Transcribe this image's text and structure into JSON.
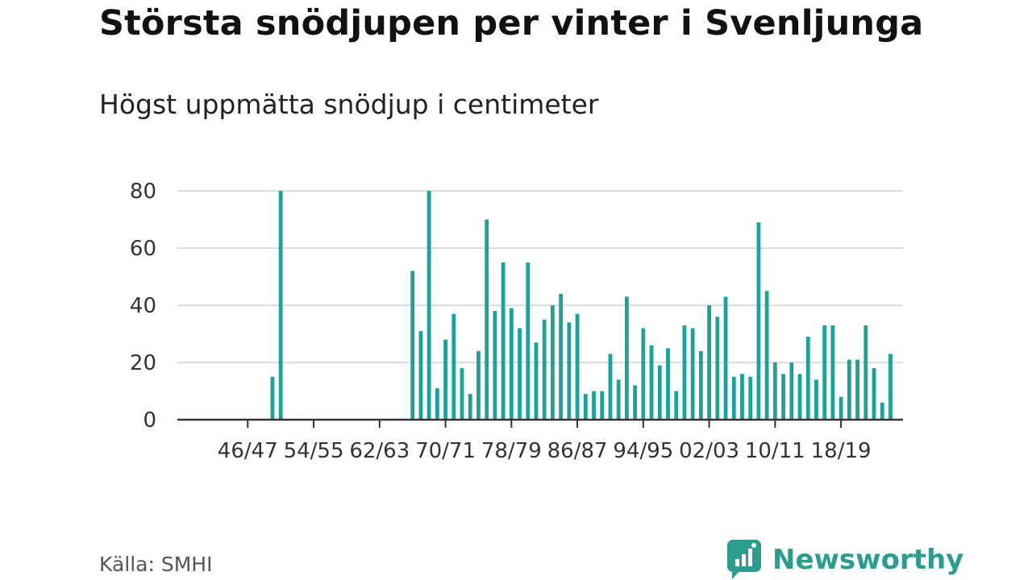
{
  "header": {
    "title": "Största snödjupen per vinter i Svenljunga",
    "subtitle": "Högst uppmätta snödjup i centimeter"
  },
  "footer": {
    "source": "Källa: SMHI",
    "brand": "Newsworthy",
    "brand_icon": "newsworthy-speech-bubble-bars-icon"
  },
  "colors": {
    "bar": "#1aa39a",
    "grid": "#dddddd",
    "axis": "#333333"
  },
  "chart_data": {
    "type": "bar",
    "title": "Största snödjupen per vinter i Svenljunga",
    "subtitle": "Högst uppmätta snödjup i centimeter",
    "xlabel": "",
    "ylabel": "",
    "ylim": [
      0,
      80
    ],
    "yticks": [
      0,
      20,
      40,
      60,
      80
    ],
    "grid": true,
    "legend": "none",
    "xtick_labels": [
      "46/47",
      "54/55",
      "62/63",
      "70/71",
      "78/79",
      "86/87",
      "94/95",
      "02/03",
      "10/11",
      "18/19"
    ],
    "categories": [
      "42/43",
      "43/44",
      "44/45",
      "45/46",
      "46/47",
      "47/48",
      "48/49",
      "49/50",
      "50/51",
      "51/52",
      "52/53",
      "53/54",
      "54/55",
      "55/56",
      "56/57",
      "57/58",
      "58/59",
      "59/60",
      "60/61",
      "61/62",
      "62/63",
      "63/64",
      "64/65",
      "65/66",
      "66/67",
      "67/68",
      "68/69",
      "69/70",
      "70/71",
      "71/72",
      "72/73",
      "73/74",
      "74/75",
      "75/76",
      "76/77",
      "77/78",
      "78/79",
      "79/80",
      "80/81",
      "81/82",
      "82/83",
      "83/84",
      "84/85",
      "85/86",
      "86/87",
      "87/88",
      "88/89",
      "89/90",
      "90/91",
      "91/92",
      "92/93",
      "93/94",
      "94/95",
      "95/96",
      "96/97",
      "97/98",
      "98/99",
      "99/00",
      "00/01",
      "01/02",
      "02/03",
      "03/04",
      "04/05",
      "05/06",
      "06/07",
      "07/08",
      "08/09",
      "09/10",
      "10/11",
      "11/12",
      "12/13",
      "13/14",
      "14/15",
      "15/16",
      "16/17",
      "17/18",
      "18/19",
      "19/20",
      "20/21",
      "21/22",
      "22/23",
      "23/24",
      "24/25",
      "25/26"
    ],
    "values": [
      null,
      null,
      null,
      null,
      null,
      null,
      null,
      15,
      80,
      null,
      null,
      null,
      null,
      null,
      null,
      null,
      null,
      null,
      null,
      null,
      null,
      null,
      null,
      null,
      52,
      31,
      80,
      11,
      28,
      37,
      18,
      9,
      24,
      70,
      38,
      55,
      39,
      32,
      55,
      27,
      35,
      40,
      44,
      34,
      37,
      9,
      10,
      10,
      23,
      14,
      43,
      12,
      32,
      26,
      19,
      25,
      10,
      33,
      32,
      24,
      40,
      36,
      43,
      15,
      16,
      15,
      69,
      45,
      20,
      16,
      20,
      16,
      29,
      14,
      33,
      33,
      8,
      21,
      21,
      33,
      18,
      6,
      23,
      null
    ]
  }
}
